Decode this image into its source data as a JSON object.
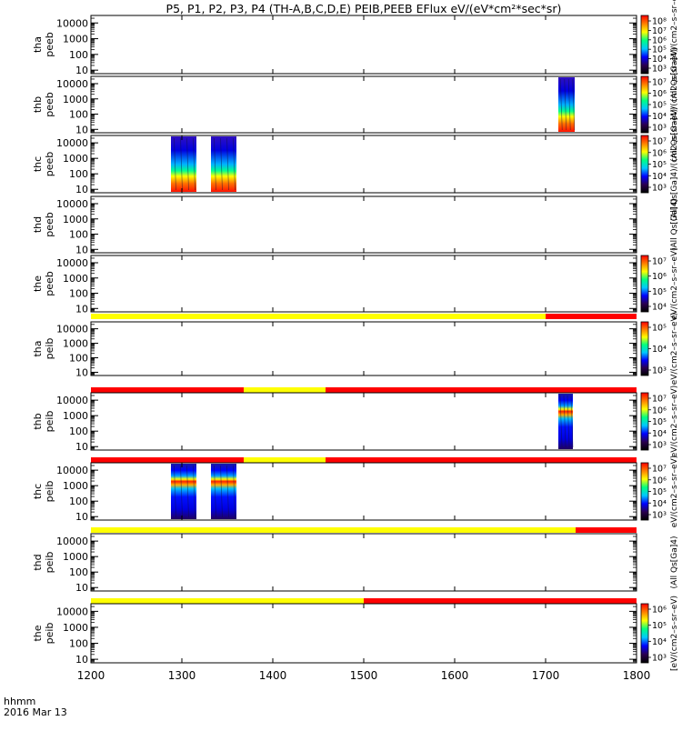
{
  "page": {
    "title": "P5, P1, P2, P3, P4 (TH-A,B,C,D,E) PEIB,PEEB EFlux eV/(eV*cm²*sec*sr)",
    "time_label": "hhmm",
    "date_label": "2016 Mar 13"
  },
  "colors": {
    "flag_yellow": "#ffff00",
    "flag_red": "#ff0000",
    "colormap": [
      "#000000",
      "#2a0050",
      "#0000ff",
      "#00c8ff",
      "#00ff80",
      "#ffff00",
      "#ff8000",
      "#ff0000"
    ]
  },
  "chart_data": {
    "type": "heatmap",
    "x_axis": {
      "range": [
        1200,
        1800
      ],
      "ticks": [
        1200,
        1300,
        1400,
        1500,
        1600,
        1700,
        1800
      ],
      "tick_labels": [
        "1200",
        "1300",
        "1400",
        "1500",
        "1600",
        "1700",
        "1800"
      ]
    },
    "y_scale": "log",
    "y_ticks": [
      10,
      100,
      1000,
      10000
    ],
    "y_tick_labels": [
      "10",
      "100",
      "1000",
      "10000"
    ],
    "panels": [
      {
        "probe": "tha",
        "product": "peeb",
        "colorbar_ticks": [
          "10³",
          "10⁴",
          "10⁵",
          "10⁶",
          "10⁷",
          "10⁸"
        ],
        "colorbar_label": "(All Qs[Ga]4)/(cm2–s–sr–eV)",
        "flags_above": null,
        "intervals": []
      },
      {
        "probe": "thb",
        "product": "peeb",
        "colorbar_ticks": [
          "10³",
          "10⁴",
          "10⁵",
          "10⁶",
          "10⁷"
        ],
        "colorbar_label": "(All Qs[Ga]4)/(cm2–s–sr–eV)",
        "flags_above": null,
        "intervals": [
          [
            1714,
            1732
          ]
        ]
      },
      {
        "probe": "thc",
        "product": "peeb",
        "colorbar_ticks": [
          "10³",
          "10⁴",
          "10⁵",
          "10⁶",
          "10⁷"
        ],
        "colorbar_label": "(All Qs[Ga]4)/(cm2–s–sr–eV)",
        "flags_above": null,
        "intervals": [
          [
            1288,
            1316
          ],
          [
            1332,
            1360
          ]
        ]
      },
      {
        "probe": "thd",
        "product": "peeb",
        "colorbar_ticks": [],
        "colorbar_label": "(All Qs[Ga]4)",
        "flags_above": null,
        "intervals": []
      },
      {
        "probe": "the",
        "product": "peeb",
        "colorbar_ticks": [
          "10⁴",
          "10⁵",
          "10⁶",
          "10⁷"
        ],
        "colorbar_label": "eV/(cm2–s–sr–eV)",
        "flags_above": null,
        "intervals": []
      },
      {
        "probe": "tha",
        "product": "peib",
        "colorbar_ticks": [
          "10³",
          "10⁴",
          "10⁵"
        ],
        "colorbar_label": "eV/(cm2–s–sr–eV)",
        "flags_above": [
          {
            "from": 1200,
            "to": 1700,
            "state": "yellow"
          },
          {
            "from": 1700,
            "to": 1800,
            "state": "red"
          }
        ],
        "intervals": []
      },
      {
        "probe": "thb",
        "product": "peib",
        "colorbar_ticks": [
          "10³",
          "10⁴",
          "10⁵",
          "10⁶",
          "10⁷"
        ],
        "colorbar_label": "eV/(cm2–s–sr–eV)",
        "flags_above": [
          {
            "from": 1200,
            "to": 1368,
            "state": "red"
          },
          {
            "from": 1368,
            "to": 1458,
            "state": "yellow"
          },
          {
            "from": 1458,
            "to": 1800,
            "state": "red"
          }
        ],
        "intervals": [
          [
            1714,
            1730
          ]
        ]
      },
      {
        "probe": "thc",
        "product": "peib",
        "colorbar_ticks": [
          "10³",
          "10⁴",
          "10⁵",
          "10⁶",
          "10⁷"
        ],
        "colorbar_label": "eV/(cm2–s–sr–eV)",
        "flags_above": [
          {
            "from": 1200,
            "to": 1368,
            "state": "red"
          },
          {
            "from": 1368,
            "to": 1458,
            "state": "yellow"
          },
          {
            "from": 1458,
            "to": 1800,
            "state": "red"
          }
        ],
        "intervals": [
          [
            1288,
            1316
          ],
          [
            1332,
            1360
          ]
        ]
      },
      {
        "probe": "thd",
        "product": "peib",
        "colorbar_ticks": [],
        "colorbar_label": "(All Qs[Ga]4)",
        "flags_above": [
          {
            "from": 1200,
            "to": 1733,
            "state": "yellow"
          },
          {
            "from": 1733,
            "to": 1800,
            "state": "red"
          }
        ],
        "intervals": []
      },
      {
        "probe": "the",
        "product": "peib",
        "colorbar_ticks": [
          "10³",
          "10⁴",
          "10⁵",
          "10⁶"
        ],
        "colorbar_label": "[eV/(cm2–s–sr–eV)",
        "flags_above": [
          {
            "from": 1200,
            "to": 1500,
            "state": "yellow"
          },
          {
            "from": 1500,
            "to": 1800,
            "state": "red"
          }
        ],
        "intervals": []
      }
    ]
  }
}
